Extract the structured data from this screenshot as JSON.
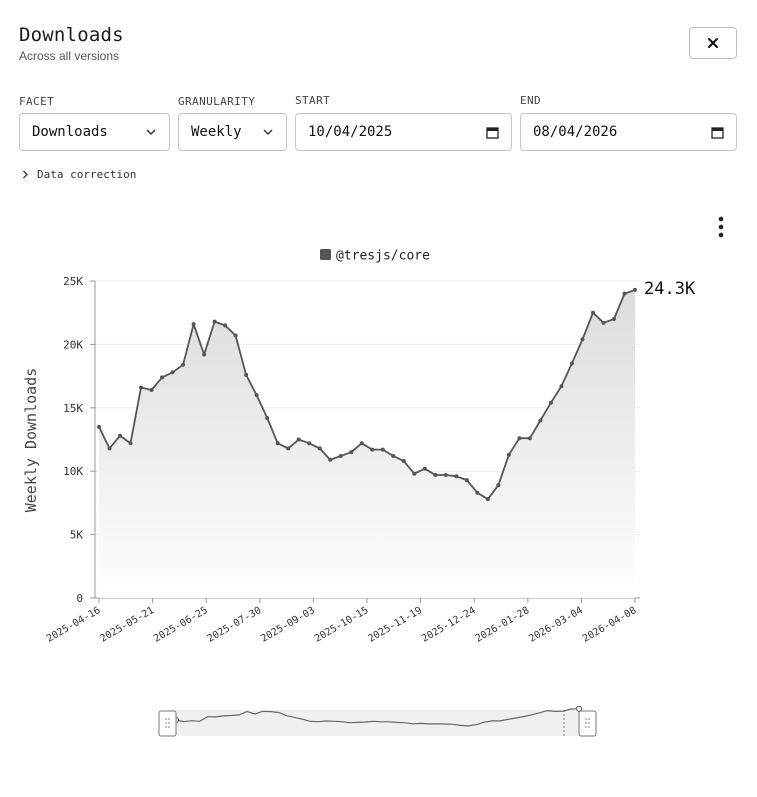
{
  "header": {
    "title": "Downloads",
    "subtitle": "Across all versions",
    "close_icon": "close-icon"
  },
  "controls": {
    "facet": {
      "label": "FACET",
      "value": "Downloads"
    },
    "granularity": {
      "label": "GRANULARITY",
      "value": "Weekly"
    },
    "start": {
      "label": "START",
      "value": "10/04/2025"
    },
    "end": {
      "label": "END",
      "value": "08/04/2026"
    },
    "data_correction": "Data correction"
  },
  "menu_icon": "more-vertical-icon",
  "chart_data": {
    "type": "area",
    "legend": "@tresjs/core",
    "ylabel": "Weekly Downloads",
    "xlabel": "",
    "ylim": [
      0,
      25000
    ],
    "y_ticks": [
      "0",
      "5K",
      "10K",
      "15K",
      "20K",
      "25K"
    ],
    "x_ticks": [
      "2025-04-16",
      "2025-05-21",
      "2025-06-25",
      "2025-07-30",
      "2025-09-03",
      "2025-10-15",
      "2025-11-19",
      "2025-12-24",
      "2026-01-28",
      "2026-03-04",
      "2026-04-08"
    ],
    "last_value_label": "24.3K",
    "series": [
      {
        "name": "@tresjs/core",
        "color": "#555555",
        "values": [
          13500,
          11800,
          12800,
          12200,
          16600,
          16400,
          17400,
          17800,
          18400,
          21600,
          19200,
          21800,
          21500,
          20700,
          17600,
          16000,
          14200,
          12200,
          11800,
          12500,
          12200,
          11800,
          10900,
          11200,
          11500,
          12200,
          11700,
          11700,
          11200,
          10800,
          9800,
          10200,
          9700,
          9700,
          9600,
          9300,
          8300,
          7800,
          8900,
          11300,
          12600,
          12600,
          14000,
          15400,
          16700,
          18500,
          20400,
          22500,
          21700,
          22000,
          24000,
          24300
        ]
      }
    ],
    "colors": {
      "line": "#555555",
      "area_top": "#dcdcdc",
      "area_bottom": "#ffffff",
      "grid": "#ececec"
    }
  }
}
